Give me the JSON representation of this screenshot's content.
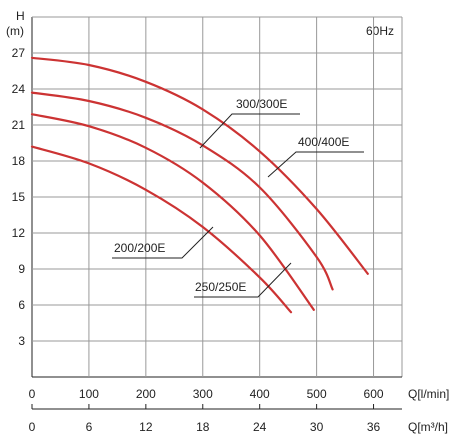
{
  "chart_data": {
    "type": "line",
    "y_axis": {
      "label": "H",
      "unit": "(m)",
      "ticks": [
        3,
        6,
        9,
        12,
        15,
        18,
        21,
        24,
        27
      ],
      "range": [
        0,
        30
      ]
    },
    "x_axis_primary": {
      "label": "Q[l/min]",
      "ticks": [
        0,
        100,
        200,
        300,
        400,
        500,
        600
      ],
      "range": [
        0,
        650
      ]
    },
    "x_axis_secondary": {
      "label": "Q[m³/h]",
      "ticks": [
        0,
        6,
        12,
        18,
        24,
        30,
        36
      ]
    },
    "annotation": "60Hz",
    "grid": true,
    "series": [
      {
        "name": "200/200E",
        "x": [
          0,
          100,
          200,
          300,
          400,
          455
        ],
        "y": [
          19.2,
          17.8,
          15.6,
          12.5,
          8.3,
          5.4
        ]
      },
      {
        "name": "250/250E",
        "x": [
          0,
          100,
          200,
          300,
          400,
          495
        ],
        "y": [
          21.9,
          20.9,
          19.1,
          16.2,
          11.8,
          5.6
        ]
      },
      {
        "name": "300/300E",
        "x": [
          0,
          100,
          200,
          300,
          400,
          500,
          528
        ],
        "y": [
          23.7,
          23.0,
          21.6,
          19.3,
          15.8,
          10.0,
          7.3
        ]
      },
      {
        "name": "400/400E",
        "x": [
          0,
          100,
          200,
          300,
          400,
          500,
          590
        ],
        "y": [
          26.6,
          26.0,
          24.6,
          22.3,
          18.8,
          14.0,
          8.6
        ]
      }
    ],
    "series_color": "#cc3333",
    "grid_color": "#999999",
    "axis_color": "#222222"
  }
}
